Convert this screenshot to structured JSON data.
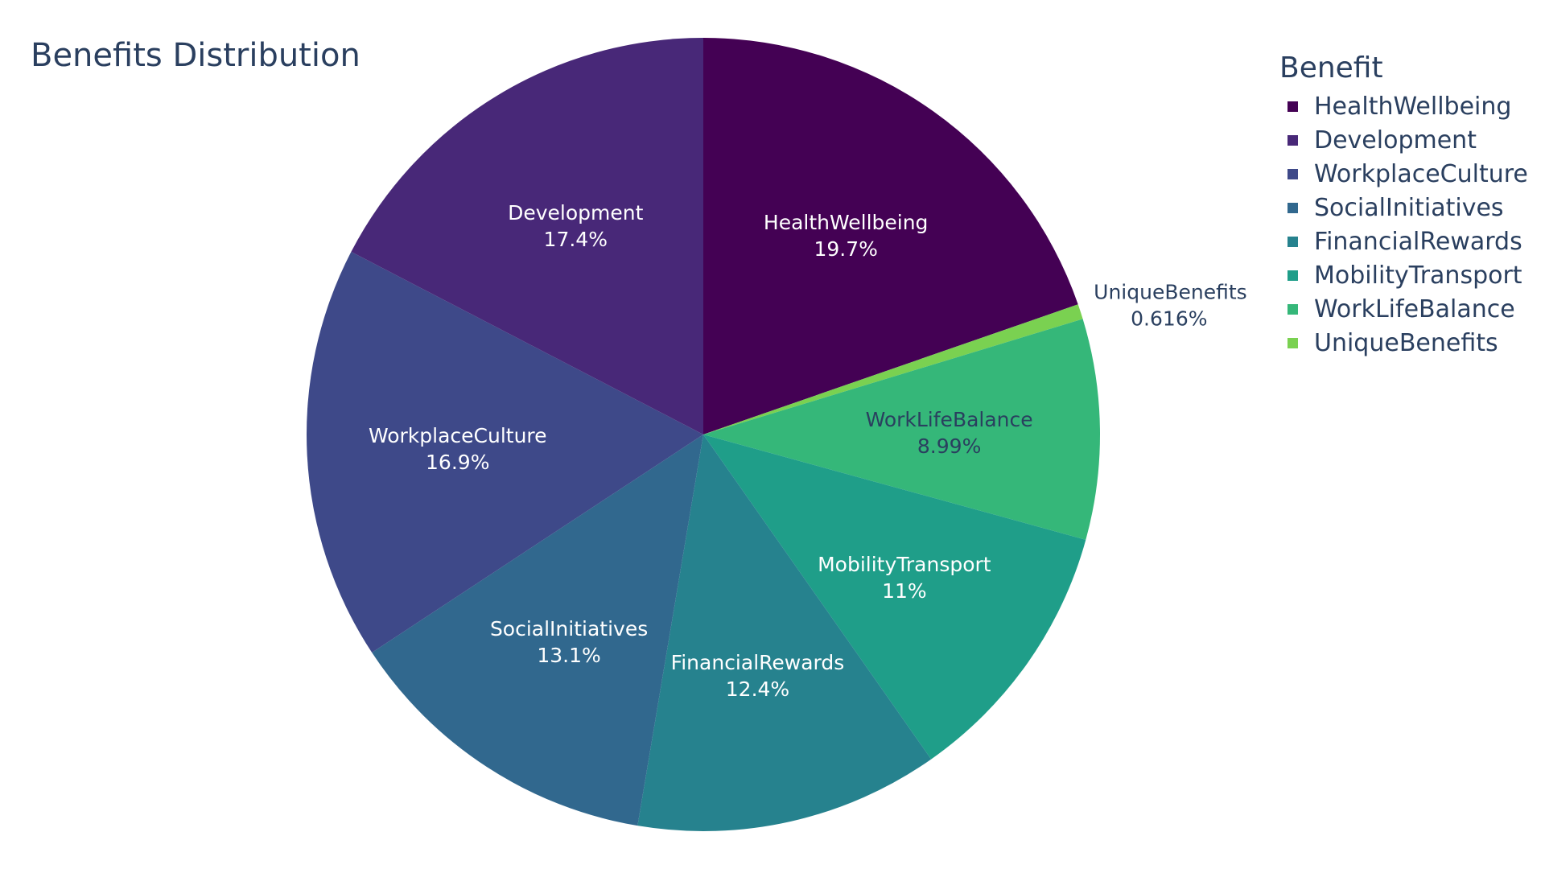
{
  "chart_data": {
    "type": "pie",
    "title": "Benefits Distribution",
    "legend_title": "Benefit",
    "legend_position": "top-right",
    "direction": "clockwise",
    "start_angle": "top",
    "slices": [
      {
        "label": "HealthWellbeing",
        "percent_text": "19.7%",
        "value": 19.7,
        "color": "#440154",
        "text_color": "#ffffff"
      },
      {
        "label": "UniqueBenefits",
        "percent_text": "0.616%",
        "value": 0.616,
        "color": "#7ad151",
        "text_color": "#2a3f5f",
        "label_outside": true
      },
      {
        "label": "WorkLifeBalance",
        "percent_text": "8.99%",
        "value": 8.99,
        "color": "#35b779",
        "text_color": "#2a3f5f"
      },
      {
        "label": "MobilityTransport",
        "percent_text": "11%",
        "value": 11.0,
        "color": "#1f9e89",
        "text_color": "#ffffff"
      },
      {
        "label": "FinancialRewards",
        "percent_text": "12.4%",
        "value": 12.4,
        "color": "#26828e",
        "text_color": "#ffffff"
      },
      {
        "label": "SocialInitiatives",
        "percent_text": "13.1%",
        "value": 13.1,
        "color": "#31688e",
        "text_color": "#ffffff"
      },
      {
        "label": "WorkplaceCulture",
        "percent_text": "16.9%",
        "value": 16.9,
        "color": "#3e4989",
        "text_color": "#ffffff"
      },
      {
        "label": "Development",
        "percent_text": "17.4%",
        "value": 17.4,
        "color": "#482878",
        "text_color": "#ffffff"
      }
    ],
    "legend_order": [
      "HealthWellbeing",
      "Development",
      "WorkplaceCulture",
      "SocialInitiatives",
      "FinancialRewards",
      "MobilityTransport",
      "WorkLifeBalance",
      "UniqueBenefits"
    ]
  }
}
